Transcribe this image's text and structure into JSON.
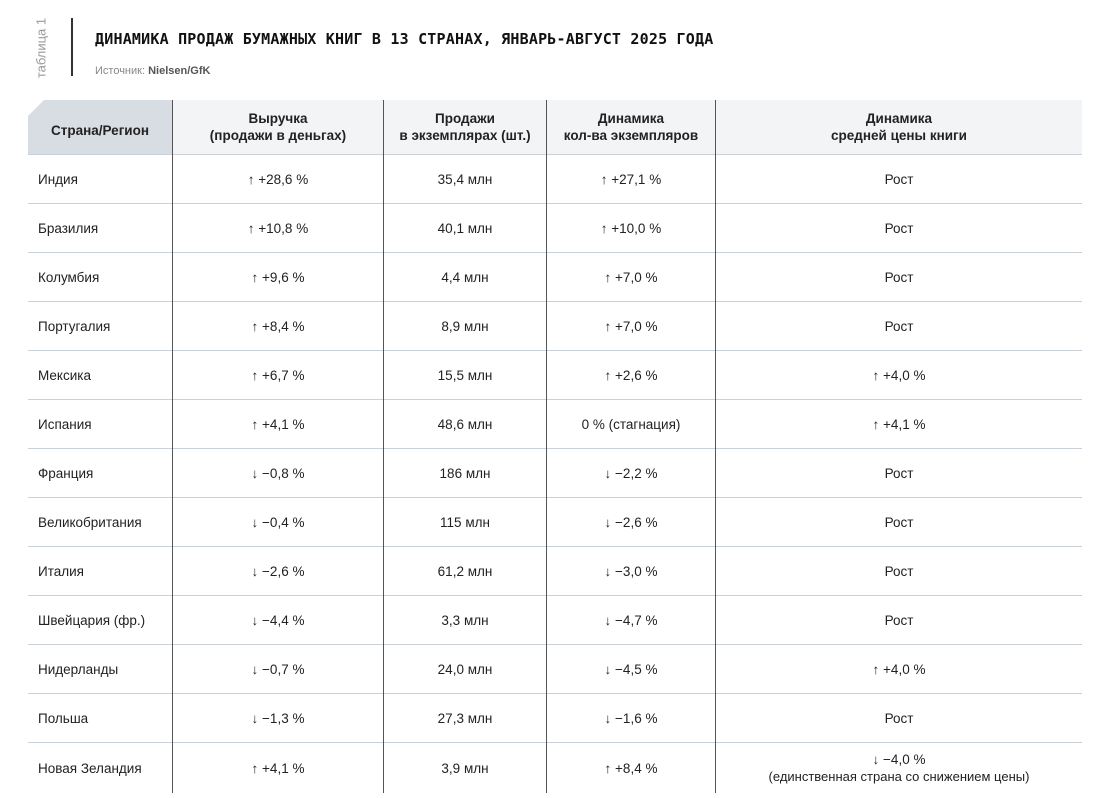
{
  "side_label": "таблица 1",
  "title": "ДИНАМИКА ПРОДАЖ БУМАЖНЫХ КНИГ В 13 СТРАНАХ, ЯНВАРЬ-АВГУСТ 2025 ГОДА",
  "source_label": "Источник:",
  "source_value": "Nielsen/GfK",
  "headers": [
    [
      "Страна/Регион"
    ],
    [
      "Выручка",
      "(продажи в деньгах)"
    ],
    [
      "Продажи",
      "в экземплярах (шт.)"
    ],
    [
      "Динамика",
      "кол-ва экземпляров"
    ],
    [
      "Динамика",
      "средней цены книги"
    ]
  ],
  "rows": [
    {
      "country": "Индия",
      "revenue": "↑ +28,6 %",
      "units": "35,4 млн",
      "units_change": "↑ +27,1 %",
      "price_change": "Рост",
      "note": ""
    },
    {
      "country": "Бразилия",
      "revenue": "↑ +10,8 %",
      "units": "40,1 млн",
      "units_change": "↑ +10,0 %",
      "price_change": "Рост",
      "note": ""
    },
    {
      "country": "Колумбия",
      "revenue": "↑ +9,6 %",
      "units": "4,4 млн",
      "units_change": "↑ +7,0 %",
      "price_change": "Рост",
      "note": ""
    },
    {
      "country": "Португалия",
      "revenue": "↑ +8,4 %",
      "units": "8,9 млн",
      "units_change": "↑ +7,0 %",
      "price_change": "Рост",
      "note": ""
    },
    {
      "country": "Мексика",
      "revenue": "↑ +6,7 %",
      "units": "15,5 млн",
      "units_change": "↑ +2,6 %",
      "price_change": "↑ +4,0 %",
      "note": ""
    },
    {
      "country": "Испания",
      "revenue": "↑ +4,1 %",
      "units": "48,6 млн",
      "units_change": "0 % (стагнация)",
      "price_change": "↑ +4,1 %",
      "note": ""
    },
    {
      "country": "Франция",
      "revenue": "↓ −0,8 %",
      "units": "186 млн",
      "units_change": "↓ −2,2 %",
      "price_change": "Рост",
      "note": ""
    },
    {
      "country": "Великобритания",
      "revenue": "↓ −0,4 %",
      "units": "115 млн",
      "units_change": "↓ −2,6 %",
      "price_change": "Рост",
      "note": ""
    },
    {
      "country": "Италия",
      "revenue": "↓ −2,6 %",
      "units": "61,2 млн",
      "units_change": "↓ −3,0 %",
      "price_change": "Рост",
      "note": ""
    },
    {
      "country": "Швейцария (фр.)",
      "revenue": "↓ −4,4 %",
      "units": "3,3 млн",
      "units_change": "↓ −4,7 %",
      "price_change": "Рост",
      "note": ""
    },
    {
      "country": "Нидерланды",
      "revenue": "↓ −0,7 %",
      "units": "24,0 млн",
      "units_change": "↓ −4,5 %",
      "price_change": "↑ +4,0 %",
      "note": ""
    },
    {
      "country": "Польша",
      "revenue": "↓ −1,3 %",
      "units": "27,3 млн",
      "units_change": "↓ −1,6 %",
      "price_change": "Рост",
      "note": ""
    },
    {
      "country": "Новая Зеландия",
      "revenue": "↑ +4,1 %",
      "units": "3,9 млн",
      "units_change": "↑ +8,4 %",
      "price_change": "↓ −4,0 %",
      "note": "(единственная страна со снижением цены)"
    }
  ]
}
